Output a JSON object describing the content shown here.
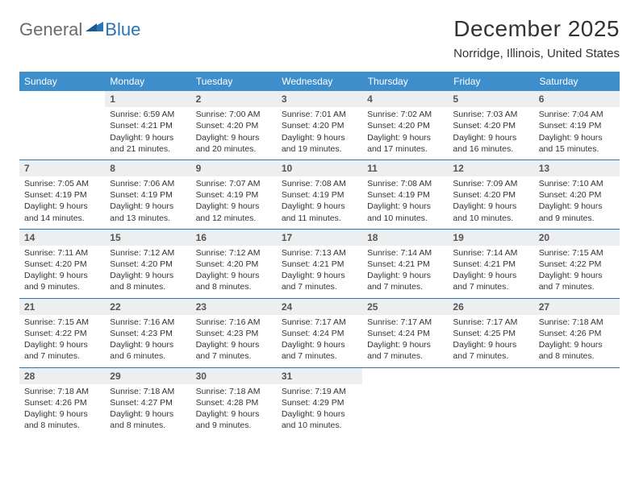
{
  "logo": {
    "general": "General",
    "blue": "Blue"
  },
  "title": "December 2025",
  "location": "Norridge, Illinois, United States",
  "colors": {
    "header_bg": "#3f8ecc",
    "header_text": "#ffffff",
    "daynum_bg": "#eceef0",
    "week_divider": "#2a74b8",
    "logo_gray": "#6b6b6b",
    "logo_blue": "#2a74b8"
  },
  "days_of_week": [
    "Sunday",
    "Monday",
    "Tuesday",
    "Wednesday",
    "Thursday",
    "Friday",
    "Saturday"
  ],
  "weeks": [
    [
      {
        "n": "",
        "sunrise": "",
        "sunset": "",
        "daylight": ""
      },
      {
        "n": "1",
        "sunrise": "Sunrise: 6:59 AM",
        "sunset": "Sunset: 4:21 PM",
        "daylight": "Daylight: 9 hours and 21 minutes."
      },
      {
        "n": "2",
        "sunrise": "Sunrise: 7:00 AM",
        "sunset": "Sunset: 4:20 PM",
        "daylight": "Daylight: 9 hours and 20 minutes."
      },
      {
        "n": "3",
        "sunrise": "Sunrise: 7:01 AM",
        "sunset": "Sunset: 4:20 PM",
        "daylight": "Daylight: 9 hours and 19 minutes."
      },
      {
        "n": "4",
        "sunrise": "Sunrise: 7:02 AM",
        "sunset": "Sunset: 4:20 PM",
        "daylight": "Daylight: 9 hours and 17 minutes."
      },
      {
        "n": "5",
        "sunrise": "Sunrise: 7:03 AM",
        "sunset": "Sunset: 4:20 PM",
        "daylight": "Daylight: 9 hours and 16 minutes."
      },
      {
        "n": "6",
        "sunrise": "Sunrise: 7:04 AM",
        "sunset": "Sunset: 4:19 PM",
        "daylight": "Daylight: 9 hours and 15 minutes."
      }
    ],
    [
      {
        "n": "7",
        "sunrise": "Sunrise: 7:05 AM",
        "sunset": "Sunset: 4:19 PM",
        "daylight": "Daylight: 9 hours and 14 minutes."
      },
      {
        "n": "8",
        "sunrise": "Sunrise: 7:06 AM",
        "sunset": "Sunset: 4:19 PM",
        "daylight": "Daylight: 9 hours and 13 minutes."
      },
      {
        "n": "9",
        "sunrise": "Sunrise: 7:07 AM",
        "sunset": "Sunset: 4:19 PM",
        "daylight": "Daylight: 9 hours and 12 minutes."
      },
      {
        "n": "10",
        "sunrise": "Sunrise: 7:08 AM",
        "sunset": "Sunset: 4:19 PM",
        "daylight": "Daylight: 9 hours and 11 minutes."
      },
      {
        "n": "11",
        "sunrise": "Sunrise: 7:08 AM",
        "sunset": "Sunset: 4:19 PM",
        "daylight": "Daylight: 9 hours and 10 minutes."
      },
      {
        "n": "12",
        "sunrise": "Sunrise: 7:09 AM",
        "sunset": "Sunset: 4:20 PM",
        "daylight": "Daylight: 9 hours and 10 minutes."
      },
      {
        "n": "13",
        "sunrise": "Sunrise: 7:10 AM",
        "sunset": "Sunset: 4:20 PM",
        "daylight": "Daylight: 9 hours and 9 minutes."
      }
    ],
    [
      {
        "n": "14",
        "sunrise": "Sunrise: 7:11 AM",
        "sunset": "Sunset: 4:20 PM",
        "daylight": "Daylight: 9 hours and 9 minutes."
      },
      {
        "n": "15",
        "sunrise": "Sunrise: 7:12 AM",
        "sunset": "Sunset: 4:20 PM",
        "daylight": "Daylight: 9 hours and 8 minutes."
      },
      {
        "n": "16",
        "sunrise": "Sunrise: 7:12 AM",
        "sunset": "Sunset: 4:20 PM",
        "daylight": "Daylight: 9 hours and 8 minutes."
      },
      {
        "n": "17",
        "sunrise": "Sunrise: 7:13 AM",
        "sunset": "Sunset: 4:21 PM",
        "daylight": "Daylight: 9 hours and 7 minutes."
      },
      {
        "n": "18",
        "sunrise": "Sunrise: 7:14 AM",
        "sunset": "Sunset: 4:21 PM",
        "daylight": "Daylight: 9 hours and 7 minutes."
      },
      {
        "n": "19",
        "sunrise": "Sunrise: 7:14 AM",
        "sunset": "Sunset: 4:21 PM",
        "daylight": "Daylight: 9 hours and 7 minutes."
      },
      {
        "n": "20",
        "sunrise": "Sunrise: 7:15 AM",
        "sunset": "Sunset: 4:22 PM",
        "daylight": "Daylight: 9 hours and 7 minutes."
      }
    ],
    [
      {
        "n": "21",
        "sunrise": "Sunrise: 7:15 AM",
        "sunset": "Sunset: 4:22 PM",
        "daylight": "Daylight: 9 hours and 7 minutes."
      },
      {
        "n": "22",
        "sunrise": "Sunrise: 7:16 AM",
        "sunset": "Sunset: 4:23 PM",
        "daylight": "Daylight: 9 hours and 6 minutes."
      },
      {
        "n": "23",
        "sunrise": "Sunrise: 7:16 AM",
        "sunset": "Sunset: 4:23 PM",
        "daylight": "Daylight: 9 hours and 7 minutes."
      },
      {
        "n": "24",
        "sunrise": "Sunrise: 7:17 AM",
        "sunset": "Sunset: 4:24 PM",
        "daylight": "Daylight: 9 hours and 7 minutes."
      },
      {
        "n": "25",
        "sunrise": "Sunrise: 7:17 AM",
        "sunset": "Sunset: 4:24 PM",
        "daylight": "Daylight: 9 hours and 7 minutes."
      },
      {
        "n": "26",
        "sunrise": "Sunrise: 7:17 AM",
        "sunset": "Sunset: 4:25 PM",
        "daylight": "Daylight: 9 hours and 7 minutes."
      },
      {
        "n": "27",
        "sunrise": "Sunrise: 7:18 AM",
        "sunset": "Sunset: 4:26 PM",
        "daylight": "Daylight: 9 hours and 8 minutes."
      }
    ],
    [
      {
        "n": "28",
        "sunrise": "Sunrise: 7:18 AM",
        "sunset": "Sunset: 4:26 PM",
        "daylight": "Daylight: 9 hours and 8 minutes."
      },
      {
        "n": "29",
        "sunrise": "Sunrise: 7:18 AM",
        "sunset": "Sunset: 4:27 PM",
        "daylight": "Daylight: 9 hours and 8 minutes."
      },
      {
        "n": "30",
        "sunrise": "Sunrise: 7:18 AM",
        "sunset": "Sunset: 4:28 PM",
        "daylight": "Daylight: 9 hours and 9 minutes."
      },
      {
        "n": "31",
        "sunrise": "Sunrise: 7:19 AM",
        "sunset": "Sunset: 4:29 PM",
        "daylight": "Daylight: 9 hours and 10 minutes."
      },
      {
        "n": "",
        "sunrise": "",
        "sunset": "",
        "daylight": ""
      },
      {
        "n": "",
        "sunrise": "",
        "sunset": "",
        "daylight": ""
      },
      {
        "n": "",
        "sunrise": "",
        "sunset": "",
        "daylight": ""
      }
    ]
  ]
}
